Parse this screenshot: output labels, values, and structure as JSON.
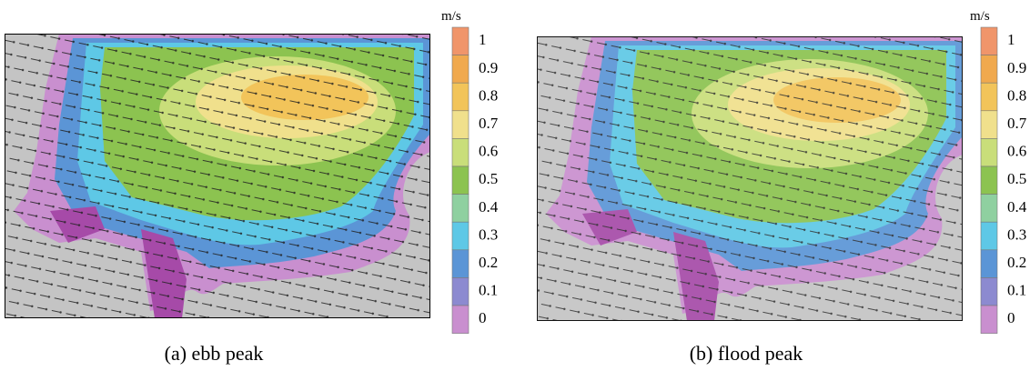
{
  "panels": [
    {
      "caption": "(a) ebb peak",
      "colorbar": {
        "unit": "m/s",
        "labels": [
          1,
          0.9,
          0.8,
          0.7,
          0.6,
          0.5,
          0.4,
          0.3,
          0.2,
          0.1,
          0
        ],
        "colors": [
          "#f0956a",
          "#f0a94e",
          "#f2c45a",
          "#f0e08c",
          "#c9de7a",
          "#8cc350",
          "#8fd0a0",
          "#5ec8e6",
          "#5b95d6",
          "#8c8ad0",
          "#c98fcf"
        ]
      }
    },
    {
      "caption": "(b) flood peak",
      "colorbar": {
        "unit": "m/s",
        "labels": [
          1,
          0.9,
          0.8,
          0.7,
          0.6,
          0.5,
          0.4,
          0.3,
          0.2,
          0.1,
          0
        ],
        "colors": [
          "#f0956a",
          "#f0a94e",
          "#f2c45a",
          "#f0e08c",
          "#c9de7a",
          "#8cc350",
          "#8fd0a0",
          "#5ec8e6",
          "#5b95d6",
          "#8c8ad0",
          "#c98fcf"
        ]
      }
    }
  ]
}
